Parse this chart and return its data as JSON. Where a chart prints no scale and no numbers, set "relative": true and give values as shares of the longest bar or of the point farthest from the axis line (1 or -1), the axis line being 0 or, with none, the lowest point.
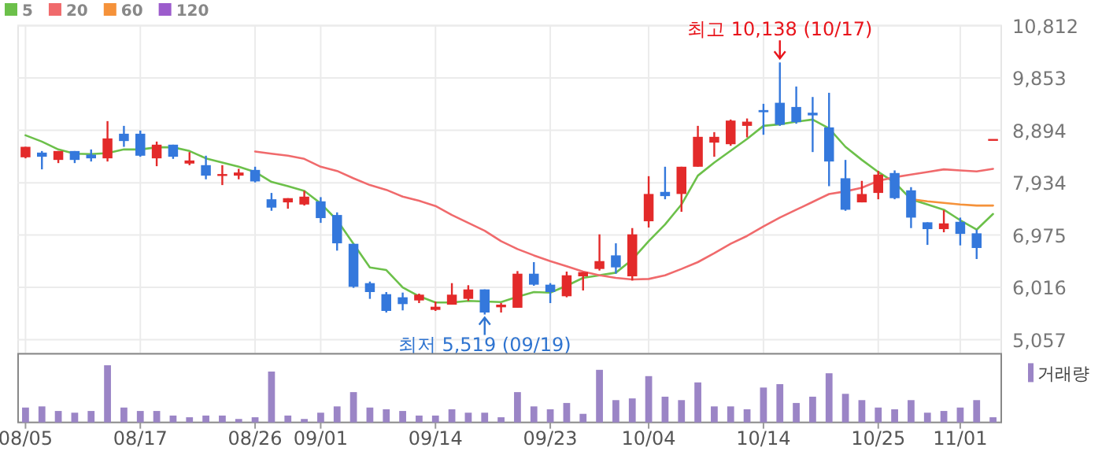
{
  "chart_data": [
    {
      "type": "candlestick",
      "categories": [
        null,
        null,
        null,
        null,
        null,
        null,
        null,
        null,
        null,
        null,
        null,
        null,
        null,
        null,
        null,
        null,
        null,
        null,
        null,
        null,
        null,
        null,
        null,
        null,
        null,
        null,
        null,
        null,
        null,
        null,
        null,
        null,
        null,
        null,
        null,
        null,
        null,
        null,
        null,
        null,
        null,
        null,
        null,
        null,
        null,
        null,
        null,
        null,
        null,
        null,
        null,
        null,
        null,
        null,
        null,
        null,
        null,
        null,
        null,
        null
      ],
      "ohlc": [
        [
          8400,
          8592,
          8381,
          8592
        ],
        [
          8486,
          8515,
          8179,
          8410
        ],
        [
          8352,
          8515,
          8294,
          8515
        ],
        [
          8515,
          8515,
          8294,
          8352
        ],
        [
          8448,
          8544,
          8323,
          8381
        ],
        [
          8381,
          9063,
          8323,
          8746
        ],
        [
          8832,
          8976,
          8592,
          8698
        ],
        [
          8832,
          8890,
          8410,
          8429
        ],
        [
          8381,
          8688,
          8237,
          8631
        ],
        [
          8631,
          8631,
          8371,
          8410
        ],
        [
          8285,
          8496,
          8256,
          8342
        ],
        [
          8256,
          8429,
          7997,
          8064
        ],
        [
          8073,
          8256,
          7891,
          8093
        ],
        [
          8064,
          8189,
          7997,
          8121
        ],
        [
          8169,
          8227,
          7939,
          7958
        ],
        [
          7631,
          7747,
          7420,
          7478
        ],
        [
          7574,
          7651,
          7458,
          7651
        ],
        [
          7535,
          7785,
          7516,
          7679
        ],
        [
          7593,
          7670,
          7199,
          7286
        ],
        [
          7343,
          7391,
          6690,
          6824
        ],
        [
          6815,
          6815,
          6008,
          6027
        ],
        [
          6094,
          6123,
          5806,
          5931
        ],
        [
          5892,
          5931,
          5556,
          5585
        ],
        [
          5835,
          5921,
          5595,
          5710
        ],
        [
          5777,
          5902,
          5729,
          5883
        ],
        [
          5604,
          5758,
          5585,
          5662
        ],
        [
          5700,
          6094,
          5700,
          5883
        ],
        [
          5806,
          6056,
          5768,
          5979
        ],
        [
          5979,
          5979,
          5519,
          5556
        ],
        [
          5652,
          5729,
          5556,
          5700
        ],
        [
          5643,
          6315,
          5643,
          6267
        ],
        [
          6267,
          6479,
          6046,
          6066
        ],
        [
          6066,
          6094,
          5729,
          5931
        ],
        [
          5854,
          6306,
          5835,
          6238
        ],
        [
          6219,
          6296,
          5960,
          6296
        ],
        [
          6354,
          6988,
          6325,
          6498
        ],
        [
          6603,
          6824,
          6267,
          6383
        ],
        [
          6219,
          7103,
          6142,
          6988
        ],
        [
          7228,
          8054,
          7113,
          7728
        ],
        [
          7766,
          8227,
          7631,
          7689
        ],
        [
          7728,
          8227,
          7401,
          8227
        ],
        [
          8227,
          8976,
          8227,
          8775
        ],
        [
          8669,
          8861,
          8410,
          8775
        ],
        [
          8640,
          9092,
          8611,
          9073
        ],
        [
          8976,
          9111,
          8765,
          9053
        ],
        [
          9265,
          9380,
          8813,
          9226
        ],
        [
          9399,
          10138,
          8976,
          8996
        ],
        [
          9322,
          9697,
          9015,
          9044
        ],
        [
          9217,
          9505,
          8496,
          9168
        ],
        [
          8948,
          9582,
          7871,
          8323
        ],
        [
          8016,
          8352,
          7420,
          7439
        ],
        [
          7574,
          7968,
          7574,
          7727
        ],
        [
          7747,
          8150,
          7631,
          8083
        ],
        [
          8112,
          8160,
          7631,
          7651
        ],
        [
          7795,
          7853,
          7103,
          7295
        ],
        [
          7209,
          7209,
          6795,
          7084
        ],
        [
          7084,
          7430,
          7026,
          7189
        ],
        [
          7218,
          7295,
          6786,
          6997
        ],
        [
          7007,
          7074,
          6536,
          6738
        ],
        [
          8736,
          8736,
          8736,
          8736
        ]
      ],
      "series": [
        {
          "type": "line",
          "name": "5",
          "color": "#6cc04a",
          "values": [
            8803,
            8688,
            8544,
            8467,
            8458,
            8477,
            8544,
            8544,
            8583,
            8583,
            8515,
            8381,
            8304,
            8227,
            8131,
            7949,
            7871,
            7785,
            7555,
            7247,
            6815,
            6383,
            6334,
            6017,
            5854,
            5739,
            5739,
            5768,
            5758,
            5748,
            5844,
            5931,
            5921,
            6046,
            6190,
            6238,
            6286,
            6527,
            6863,
            7170,
            7535,
            8064,
            8304,
            8520,
            8736,
            8976,
            9005,
            9053,
            9092,
            8928,
            8592,
            8352,
            8131,
            7939,
            7631,
            7535,
            7439,
            7247,
            7074,
            7362
          ]
        },
        {
          "type": "line",
          "name": "20",
          "color": "#f06a6c",
          "values": [
            null,
            null,
            null,
            null,
            null,
            null,
            null,
            null,
            null,
            null,
            null,
            null,
            null,
            null,
            8506,
            8467,
            8429,
            8371,
            8227,
            8150,
            8016,
            7891,
            7804,
            7679,
            7603,
            7507,
            7343,
            7199,
            7055,
            6863,
            6719,
            6603,
            6498,
            6402,
            6306,
            6238,
            6190,
            6161,
            6171,
            6238,
            6354,
            6479,
            6642,
            6815,
            6959,
            7132,
            7295,
            7439,
            7583,
            7727,
            7775,
            7843,
            7968,
            8035,
            8083,
            8131,
            8179,
            8160,
            8141,
            8189
          ]
        },
        {
          "type": "line",
          "name": "60",
          "color": "#f5923a",
          "values": [
            null,
            null,
            null,
            null,
            null,
            null,
            null,
            null,
            null,
            null,
            null,
            null,
            null,
            null,
            null,
            null,
            null,
            null,
            null,
            null,
            null,
            null,
            null,
            null,
            null,
            null,
            null,
            null,
            null,
            null,
            null,
            null,
            null,
            null,
            null,
            null,
            null,
            null,
            null,
            null,
            null,
            null,
            null,
            null,
            null,
            null,
            null,
            null,
            null,
            null,
            null,
            null,
            null,
            null,
            7631,
            7593,
            7564,
            7535,
            7516,
            7516
          ]
        },
        {
          "type": "line",
          "name": "120",
          "color": "#9c5ccc",
          "values": [
            null,
            null,
            null,
            null,
            null,
            null,
            null,
            null,
            null,
            null,
            null,
            null,
            null,
            null,
            null,
            null,
            null,
            null,
            null,
            null,
            null,
            null,
            null,
            null,
            null,
            null,
            null,
            null,
            null,
            null,
            null,
            null,
            null,
            null,
            null,
            null,
            null,
            null,
            null,
            null,
            null,
            null,
            null,
            null,
            null,
            null,
            null,
            null,
            null,
            null,
            null,
            null,
            null,
            null,
            null,
            null,
            null,
            null,
            null,
            null
          ]
        }
      ],
      "ylim": [
        4800,
        10812
      ],
      "yticks": [
        {
          "value": 5057,
          "label": "5,057"
        },
        {
          "value": 6016,
          "label": "6,016"
        },
        {
          "value": 6975,
          "label": "6,975"
        },
        {
          "value": 7934,
          "label": "7,934"
        },
        {
          "value": 8894,
          "label": "8,894"
        },
        {
          "value": 9853,
          "label": "9,853"
        },
        {
          "value": 10812,
          "label": "10,812"
        }
      ],
      "grid": true,
      "legend": "top left",
      "tick_labels": "y",
      "annotations": [
        {
          "text": "최고 10,138 (10/17)",
          "y": 10138
        },
        {
          "text": "최저 5,519 (09/19)",
          "y": 5519
        }
      ]
    },
    {
      "type": "bar",
      "relative": true,
      "categories": [
        "08/05",
        null,
        null,
        null,
        null,
        null,
        null,
        "08/17",
        null,
        null,
        null,
        null,
        null,
        null,
        "08/26",
        null,
        null,
        null,
        "09/01",
        null,
        null,
        null,
        null,
        null,
        null,
        "09/14",
        null,
        null,
        null,
        null,
        null,
        null,
        "09/23",
        null,
        null,
        null,
        null,
        null,
        "10/04",
        null,
        null,
        null,
        null,
        null,
        null,
        "10/14",
        null,
        null,
        null,
        null,
        null,
        null,
        "10/25",
        null,
        null,
        null,
        null,
        "11/01",
        null,
        null
      ],
      "series": [
        {
          "name": "거래량",
          "color": "#9b85c6",
          "values": [
            0.26,
            0.28,
            0.2,
            0.17,
            0.2,
            1,
            0.26,
            0.2,
            0.2,
            0.12,
            0.09,
            0.12,
            0.12,
            0.06,
            0.09,
            0.89,
            0.12,
            0.06,
            0.17,
            0.28,
            0.53,
            0.26,
            0.23,
            0.2,
            0.12,
            0.12,
            0.23,
            0.17,
            0.17,
            0.09,
            0.53,
            0.28,
            0.23,
            0.34,
            0.15,
            0.92,
            0.39,
            0.42,
            0.81,
            0.45,
            0.39,
            0.7,
            0.28,
            0.28,
            0.23,
            0.61,
            0.67,
            0.34,
            0.45,
            0.86,
            0.5,
            0.39,
            0.26,
            0.23,
            0.39,
            0.17,
            0.2,
            0.26,
            0.39,
            0.09
          ]
        }
      ],
      "legend": "top right",
      "tick_labels": "x"
    }
  ]
}
